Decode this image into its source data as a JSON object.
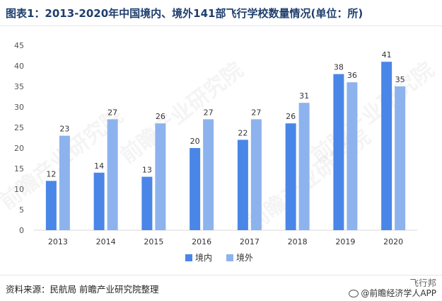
{
  "title": "图表1：2013-2020年中国境内、境外141部飞行学校数量情况(单位：所)",
  "source": "资料来源：民航局 前瞻产业研究院整理",
  "brand": {
    "top_text": "飞行邦",
    "bottom_text": "@前瞻经济学人APP"
  },
  "watermark_text": "前瞻产业研究院",
  "colors": {
    "domestic": "#4a86e8",
    "foreign": "#8db3ee",
    "title": "#1f3e6e",
    "axis": "#d9d9d9"
  },
  "chart_data": {
    "type": "bar",
    "categories": [
      "2013",
      "2014",
      "2015",
      "2016",
      "2017",
      "2018",
      "2019",
      "2020"
    ],
    "series": [
      {
        "name": "境内",
        "values": [
          12,
          14,
          13,
          20,
          22,
          26,
          38,
          41
        ]
      },
      {
        "name": "境外",
        "values": [
          23,
          27,
          26,
          27,
          27,
          31,
          36,
          35
        ]
      }
    ],
    "ylim": [
      0,
      45
    ],
    "yticks": [
      0,
      5,
      10,
      15,
      20,
      25,
      30,
      35,
      40,
      45
    ],
    "title": "",
    "xlabel": "",
    "ylabel": "",
    "grid": false,
    "legend_position": "bottom"
  }
}
